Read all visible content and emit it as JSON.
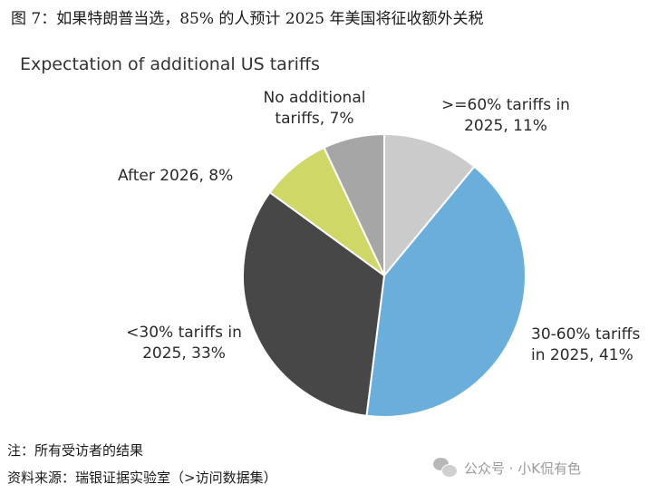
{
  "caption": "图 7：如果特朗普当选，85% 的人预计 2025 年美国将征收额外关税",
  "chart_data": {
    "type": "pie",
    "title": "Expectation of additional US tariffs",
    "slices": [
      {
        "label": ">=60% tariffs in\n2025, 11%",
        "value": 11,
        "color": "#cbcbcb"
      },
      {
        "label": "30-60% tariffs\nin 2025, 41%",
        "value": 41,
        "color": "#6aafdc"
      },
      {
        "label": "<30% tariffs in\n2025, 33%",
        "value": 33,
        "color": "#474747"
      },
      {
        "label": "After 2026, 8%",
        "value": 8,
        "color": "#cfd866"
      },
      {
        "label": "No additional\ntariffs, 7%",
        "value": 7,
        "color": "#a6a6a6"
      }
    ],
    "start": "12 o'clock",
    "direction": "clockwise"
  },
  "note": "注：所有受访者的结果",
  "source": "资料来源：瑞银证据实验室（>访问数据集）",
  "watermark": {
    "icon": "wechat-icon",
    "text": "公众号 · 小K侃有色"
  }
}
